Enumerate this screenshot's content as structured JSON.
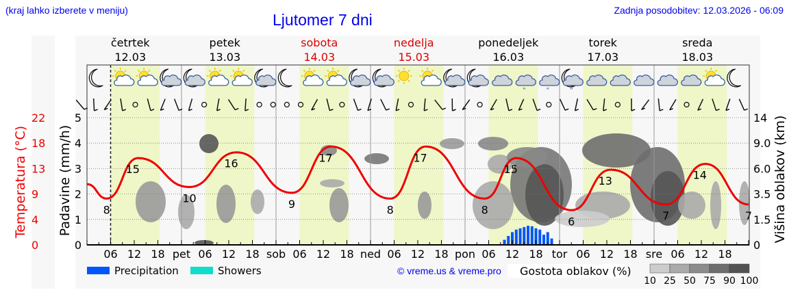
{
  "header": {
    "note": "(kraj lahko izberete v meniju)",
    "title": "Ljutomer 7 dni",
    "last_update": "Zadnja posodobitev: 12.03.2026 - 06:09"
  },
  "days": [
    {
      "name": "četrtek",
      "date": "12.03",
      "weekend": false,
      "short": ""
    },
    {
      "name": "petek",
      "date": "13.03",
      "weekend": false,
      "short": "pet"
    },
    {
      "name": "sobota",
      "date": "14.03",
      "weekend": true,
      "short": "sob"
    },
    {
      "name": "nedelja",
      "date": "15.03",
      "weekend": true,
      "short": "ned"
    },
    {
      "name": "ponedeljek",
      "date": "16.03",
      "weekend": false,
      "short": "pon"
    },
    {
      "name": "torek",
      "date": "17.03",
      "weekend": false,
      "short": "tor"
    },
    {
      "name": "sreda",
      "date": "18.03",
      "weekend": false,
      "short": "sre"
    }
  ],
  "hour_ticks": [
    "06",
    "12",
    "18"
  ],
  "axes": {
    "left_temp_label": "Temperatura (°C)",
    "left_temp_ticks": [
      "22",
      "18",
      "13",
      "9",
      "4",
      "0"
    ],
    "precip_label": "Padavine (mm/h)",
    "precip_ticks": [
      "5",
      "4",
      "3",
      "2",
      "1",
      "0"
    ],
    "right_label": "Višina oblakov (km)",
    "right_ticks": [
      "14",
      "9.0",
      "6.0",
      "3.5",
      "1.5",
      "0"
    ]
  },
  "legend": {
    "precipitation_label": "Precipitation",
    "precipitation_color": "#0055ff",
    "showers_label": "Showers",
    "showers_color": "#11ddcc",
    "credit": "© vreme.us & vreme.pro",
    "cloud_density_label": "Gostota oblakov (%)",
    "cloud_scale": [
      "10",
      "25",
      "50",
      "75",
      "90",
      "100"
    ],
    "cloud_colors": [
      "#cccccc",
      "#aaaaaa",
      "#8c8c8c",
      "#6e6e6e",
      "#535353"
    ]
  },
  "colors": {
    "title": "#0000ee",
    "weekend": "#dd0000",
    "temperature": "#ee0000",
    "daylight": "#eff7c8",
    "night": "#f7f7f7"
  },
  "icons": [
    "moon-icon",
    "sun-cloud-icon",
    "sun-cloud-icon",
    "moon-cloud-icon",
    "moon-cloud-icon",
    "sun-cloud-icon",
    "sun-cloud-icon",
    "moon-cloud-icon",
    "moon-icon",
    "sun-cloud-icon",
    "sun-cloud-icon",
    "moon-cloud-icon",
    "moon-cloud-icon",
    "sun-icon",
    "sun-cloud-icon",
    "moon-cloud-icon",
    "moon-cloud-icon",
    "cloud-icon",
    "cloud-rain-icon",
    "cloud-rain-icon",
    "moon-cloud-rain-icon",
    "cloud-icon",
    "cloud-icon",
    "cloud-icon",
    "cloud-icon",
    "cloud-icon",
    "sun-cloud-icon",
    "moon-icon"
  ],
  "chart_data": {
    "type": "line",
    "title": "Ljutomer 7 dni",
    "xlabel": "",
    "ylabel": "Temperatura (°C) / Padavine (mm/h)",
    "x_categories": [
      "čet 12.03",
      "pet 13.03",
      "sob 14.03",
      "ned 15.03",
      "pon 16.03",
      "tor 17.03",
      "sre 18.03"
    ],
    "series": [
      {
        "name": "Temperatura (°C)",
        "color": "#ee0000",
        "labeled_extremes": [
          {
            "day": "12.03",
            "hour": 5,
            "value": 8
          },
          {
            "day": "12.03",
            "hour": 13,
            "value": 15
          },
          {
            "day": "13.03",
            "hour": 2,
            "value": 10
          },
          {
            "day": "13.03",
            "hour": 14,
            "value": 16
          },
          {
            "day": "14.03",
            "hour": 4,
            "value": 9
          },
          {
            "day": "14.03",
            "hour": 14,
            "value": 17
          },
          {
            "day": "15.03",
            "hour": 5,
            "value": 8
          },
          {
            "day": "15.03",
            "hour": 14,
            "value": 17
          },
          {
            "day": "16.03",
            "hour": 5,
            "value": 8
          },
          {
            "day": "16.03",
            "hour": 13,
            "value": 15
          },
          {
            "day": "17.03",
            "hour": 3,
            "value": 6
          },
          {
            "day": "17.03",
            "hour": 13,
            "value": 13
          },
          {
            "day": "18.03",
            "hour": 3,
            "value": 7
          },
          {
            "day": "18.03",
            "hour": 13,
            "value": 14
          },
          {
            "day": "18.03",
            "hour": 24,
            "value": 7
          }
        ]
      },
      {
        "name": "Precipitation (mm/h)",
        "type": "bar",
        "color": "#0055ff",
        "x_hours_from_start": [
          106,
          107,
          108,
          109,
          110,
          111,
          112,
          113,
          114,
          115,
          116,
          117,
          118
        ],
        "values": [
          0.2,
          0.35,
          0.5,
          0.6,
          0.65,
          0.7,
          0.75,
          0.73,
          0.65,
          0.6,
          0.4,
          0.5,
          0.25
        ]
      }
    ],
    "left_temp_ticks": [
      0,
      4,
      9,
      13,
      18,
      22
    ],
    "precip_ticks": [
      0,
      1,
      2,
      3,
      4,
      5
    ],
    "cloud_height_ticks_km": [
      0,
      1.5,
      3.5,
      6.0,
      9.0,
      14
    ],
    "ylim": [
      0,
      5
    ],
    "grid": true,
    "legend_position": "bottom"
  }
}
